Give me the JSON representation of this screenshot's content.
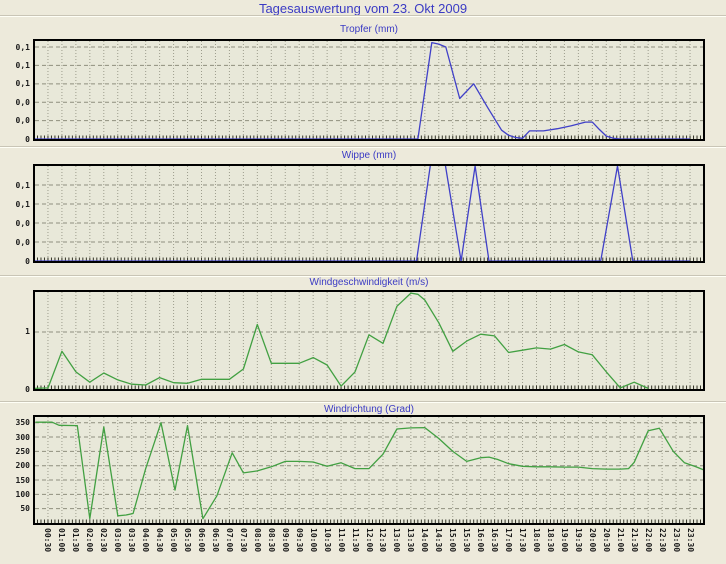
{
  "page": {
    "title": "Tagesauswertung vom 23. Okt 2009",
    "background_color": "#EDEADB",
    "plot_background_color": "#E8E8D9",
    "title_color": "#3B3BC4",
    "grid_color": "#8E8E7E",
    "axis_color": "#000000",
    "tick_label_color": "#1C1C1C"
  },
  "x_axis": {
    "start_hour": 0,
    "end_hour": 24,
    "tick_labels": [
      "00:30",
      "01:00",
      "01:30",
      "02:00",
      "02:30",
      "03:00",
      "03:30",
      "04:00",
      "04:30",
      "05:00",
      "05:30",
      "06:00",
      "06:30",
      "07:00",
      "07:30",
      "08:00",
      "08:30",
      "09:00",
      "09:30",
      "10:00",
      "10:30",
      "11:00",
      "11:30",
      "12:00",
      "12:30",
      "13:00",
      "13:30",
      "14:00",
      "14:30",
      "15:00",
      "15:30",
      "16:00",
      "16:30",
      "17:00",
      "17:30",
      "18:00",
      "18:30",
      "19:00",
      "19:30",
      "20:00",
      "20:30",
      "21:00",
      "21:30",
      "22:00",
      "22:30",
      "23:00",
      "23:30"
    ]
  },
  "chart_data": [
    {
      "type": "line",
      "title": "Tropfer (mm)",
      "line_color": "#4040C8",
      "ylim": [
        0,
        0.1332
      ],
      "grid": true,
      "y_gridlines": [
        {
          "value": 0.125,
          "label": "0,1"
        },
        {
          "value": 0.1,
          "label": "0,1"
        },
        {
          "value": 0.075,
          "label": "0,1"
        },
        {
          "value": 0.05,
          "label": "0,0"
        },
        {
          "value": 0.025,
          "label": "0,0"
        },
        {
          "value": 0,
          "label": "0"
        }
      ],
      "points": [
        [
          0,
          0
        ],
        [
          13.5,
          0
        ],
        [
          13.75,
          0
        ],
        [
          14.25,
          0.131
        ],
        [
          14.5,
          0.129
        ],
        [
          14.75,
          0.125
        ],
        [
          15.25,
          0.055
        ],
        [
          15.75,
          0.075
        ],
        [
          16.25,
          0.043
        ],
        [
          16.75,
          0.012
        ],
        [
          17,
          0.005
        ],
        [
          17.25,
          0.002
        ],
        [
          17.5,
          0.001
        ],
        [
          17.75,
          0.011
        ],
        [
          18.25,
          0.011
        ],
        [
          18.75,
          0.014
        ],
        [
          19.25,
          0.018
        ],
        [
          19.75,
          0.023
        ],
        [
          20,
          0.023
        ],
        [
          20.25,
          0.013
        ],
        [
          20.5,
          0.004
        ],
        [
          20.75,
          0.001
        ],
        [
          21,
          0
        ],
        [
          23.5,
          0
        ]
      ]
    },
    {
      "type": "line",
      "title": "Wippe (mm)",
      "line_color": "#4040C8",
      "ylim": [
        0,
        0.125
      ],
      "grid": true,
      "y_gridlines": [
        {
          "value": 0.1,
          "label": "0,1"
        },
        {
          "value": 0.075,
          "label": "0,1"
        },
        {
          "value": 0.05,
          "label": "0,0"
        },
        {
          "value": 0.025,
          "label": "0,0"
        },
        {
          "value": 0,
          "label": "0"
        }
      ],
      "points": [
        [
          0,
          0
        ],
        [
          13.7,
          0
        ],
        [
          14.45,
          0.19
        ],
        [
          15.3,
          0
        ],
        [
          15.8,
          0.125
        ],
        [
          16.3,
          0
        ],
        [
          20.3,
          0
        ],
        [
          20.9,
          0.125
        ],
        [
          21.45,
          0
        ],
        [
          23.5,
          0
        ]
      ]
    },
    {
      "type": "line",
      "title": "Windgeschwindigkeit (m/s)",
      "line_color": "#42A042",
      "ylim": [
        0,
        1.7
      ],
      "grid": true,
      "y_gridlines": [
        {
          "value": 1,
          "label": "1"
        },
        {
          "value": 0,
          "label": "0"
        }
      ],
      "points": [
        [
          0,
          0.01
        ],
        [
          0.5,
          0.02
        ],
        [
          1,
          0.66
        ],
        [
          1.5,
          0.3
        ],
        [
          2,
          0.12
        ],
        [
          2.5,
          0.28
        ],
        [
          3,
          0.16
        ],
        [
          3.5,
          0.085
        ],
        [
          4,
          0.07
        ],
        [
          4.5,
          0.2
        ],
        [
          5,
          0.11
        ],
        [
          5.5,
          0.1
        ],
        [
          6,
          0.17
        ],
        [
          6.5,
          0.17
        ],
        [
          7,
          0.17
        ],
        [
          7.5,
          0.35
        ],
        [
          8,
          1.13
        ],
        [
          8.5,
          0.45
        ],
        [
          9,
          0.45
        ],
        [
          9.5,
          0.45
        ],
        [
          10,
          0.55
        ],
        [
          10.5,
          0.42
        ],
        [
          11,
          0.05
        ],
        [
          11.5,
          0.3
        ],
        [
          12,
          0.95
        ],
        [
          12.5,
          0.8
        ],
        [
          13,
          1.45
        ],
        [
          13.5,
          1.68
        ],
        [
          13.75,
          1.66
        ],
        [
          14,
          1.56
        ],
        [
          14.5,
          1.16
        ],
        [
          15,
          0.66
        ],
        [
          15.5,
          0.84
        ],
        [
          16,
          0.96
        ],
        [
          16.5,
          0.93
        ],
        [
          17,
          0.64
        ],
        [
          17.5,
          0.68
        ],
        [
          18,
          0.72
        ],
        [
          18.5,
          0.7
        ],
        [
          19,
          0.78
        ],
        [
          19.5,
          0.65
        ],
        [
          20,
          0.6
        ],
        [
          20.5,
          0.3
        ],
        [
          21,
          0.02
        ],
        [
          21.5,
          0.12
        ],
        [
          22,
          0.01
        ]
      ]
    },
    {
      "type": "line",
      "title": "Windrichtung (Grad)",
      "line_color": "#42A042",
      "ylim": [
        0,
        370
      ],
      "grid": true,
      "y_gridlines": [
        {
          "value": 350,
          "label": "350"
        },
        {
          "value": 300,
          "label": "300"
        },
        {
          "value": 250,
          "label": "250"
        },
        {
          "value": 200,
          "label": "200"
        },
        {
          "value": 150,
          "label": "150"
        },
        {
          "value": 100,
          "label": "100"
        },
        {
          "value": 50,
          "label": "50"
        }
      ],
      "points": [
        [
          0.05,
          352
        ],
        [
          0.65,
          352
        ],
        [
          0.9,
          341
        ],
        [
          1.55,
          340
        ],
        [
          2,
          15
        ],
        [
          2.5,
          335
        ],
        [
          3,
          25
        ],
        [
          3.3,
          28
        ],
        [
          3.55,
          33
        ],
        [
          4,
          190
        ],
        [
          4.55,
          350
        ],
        [
          5.05,
          115
        ],
        [
          5.5,
          340
        ],
        [
          6.05,
          15
        ],
        [
          6.55,
          95
        ],
        [
          7.1,
          245
        ],
        [
          7.5,
          175
        ],
        [
          8,
          182
        ],
        [
          8.5,
          196
        ],
        [
          9,
          215
        ],
        [
          9.5,
          215
        ],
        [
          10,
          213
        ],
        [
          10.5,
          198
        ],
        [
          11,
          210
        ],
        [
          11.5,
          190
        ],
        [
          12,
          190
        ],
        [
          12.5,
          240
        ],
        [
          13,
          328
        ],
        [
          13.5,
          332
        ],
        [
          14,
          333
        ],
        [
          14.5,
          295
        ],
        [
          15,
          250
        ],
        [
          15.5,
          215
        ],
        [
          16,
          228
        ],
        [
          16.3,
          230
        ],
        [
          16.6,
          222
        ],
        [
          17,
          207
        ],
        [
          17.5,
          198
        ],
        [
          18,
          196
        ],
        [
          18.5,
          196
        ],
        [
          19,
          195
        ],
        [
          19.5,
          195
        ],
        [
          20,
          190
        ],
        [
          20.5,
          188
        ],
        [
          21,
          188
        ],
        [
          21.3,
          190
        ],
        [
          21.5,
          212
        ],
        [
          22,
          322
        ],
        [
          22.4,
          331
        ],
        [
          22.9,
          250
        ],
        [
          23.3,
          210
        ],
        [
          23.7,
          197
        ],
        [
          24,
          185
        ]
      ]
    }
  ]
}
